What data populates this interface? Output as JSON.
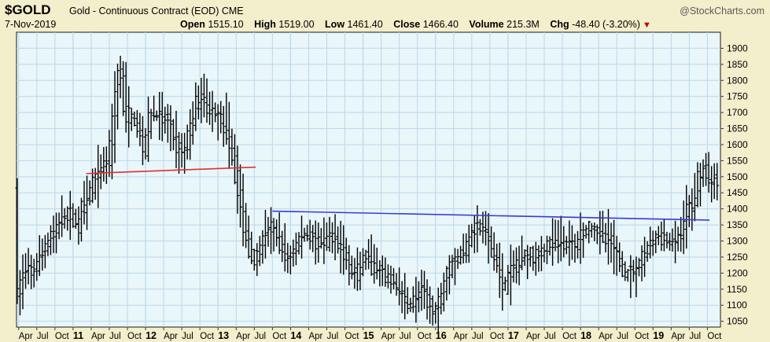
{
  "header": {
    "symbol": "$GOLD",
    "description": "Gold - Continuous Contract (EOD)",
    "exchange": "CME",
    "watermark": "@StockCharts.com",
    "date": "7-Nov-2019",
    "open_label": "Open",
    "open_value": "1515.10",
    "high_label": "High",
    "high_value": "1519.00",
    "low_label": "Low",
    "low_value": "1461.40",
    "close_label": "Close",
    "close_value": "1466.40",
    "volume_label": "Volume",
    "volume_value": "215.3M",
    "chg_label": "Chg",
    "chg_value": "-48.40 (-3.20%)"
  },
  "chart_data": {
    "type": "ohlc",
    "x_range": [
      2010.22,
      2019.93
    ],
    "ylim": [
      1032,
      1950
    ],
    "y_ticks": [
      1050,
      1100,
      1150,
      1200,
      1250,
      1300,
      1350,
      1400,
      1450,
      1500,
      1550,
      1600,
      1650,
      1700,
      1750,
      1800,
      1850,
      1900
    ],
    "x_tick_labels": [
      {
        "t": 2010.25,
        "label": "Apr"
      },
      {
        "t": 2010.5,
        "label": "Jul"
      },
      {
        "t": 2010.75,
        "label": "Oct"
      },
      {
        "t": 2011.0,
        "label": "11",
        "year": true
      },
      {
        "t": 2011.25,
        "label": "Apr"
      },
      {
        "t": 2011.5,
        "label": "Jul"
      },
      {
        "t": 2011.75,
        "label": "Oct"
      },
      {
        "t": 2012.0,
        "label": "12",
        "year": true
      },
      {
        "t": 2012.25,
        "label": "Apr"
      },
      {
        "t": 2012.5,
        "label": "Jul"
      },
      {
        "t": 2012.75,
        "label": "Oct"
      },
      {
        "t": 2013.0,
        "label": "13",
        "year": true
      },
      {
        "t": 2013.25,
        "label": "Apr"
      },
      {
        "t": 2013.5,
        "label": "Jul"
      },
      {
        "t": 2013.75,
        "label": "Oct"
      },
      {
        "t": 2014.0,
        "label": "14",
        "year": true
      },
      {
        "t": 2014.25,
        "label": "Apr"
      },
      {
        "t": 2014.5,
        "label": "Jul"
      },
      {
        "t": 2014.75,
        "label": "Oct"
      },
      {
        "t": 2015.0,
        "label": "15",
        "year": true
      },
      {
        "t": 2015.25,
        "label": "Apr"
      },
      {
        "t": 2015.5,
        "label": "Jul"
      },
      {
        "t": 2015.75,
        "label": "Oct"
      },
      {
        "t": 2016.0,
        "label": "16",
        "year": true
      },
      {
        "t": 2016.25,
        "label": "Apr"
      },
      {
        "t": 2016.5,
        "label": "Jul"
      },
      {
        "t": 2016.75,
        "label": "Oct"
      },
      {
        "t": 2017.0,
        "label": "17",
        "year": true
      },
      {
        "t": 2017.25,
        "label": "Apr"
      },
      {
        "t": 2017.5,
        "label": "Jul"
      },
      {
        "t": 2017.75,
        "label": "Oct"
      },
      {
        "t": 2018.0,
        "label": "18",
        "year": true
      },
      {
        "t": 2018.25,
        "label": "Apr"
      },
      {
        "t": 2018.5,
        "label": "Jul"
      },
      {
        "t": 2018.75,
        "label": "Oct"
      },
      {
        "t": 2019.0,
        "label": "19",
        "year": true
      },
      {
        "t": 2019.25,
        "label": "Apr"
      },
      {
        "t": 2019.5,
        "label": "Jul"
      },
      {
        "t": 2019.75,
        "label": "Oct"
      }
    ],
    "trendlines": [
      {
        "color": "#e03030",
        "from": [
          2011.18,
          1510
        ],
        "to": [
          2013.52,
          1530
        ]
      },
      {
        "color": "#3a3ad8",
        "from": [
          2013.75,
          1393
        ],
        "to": [
          2019.78,
          1365
        ]
      }
    ],
    "anchors": [
      [
        2010.22,
        1110
      ],
      [
        2010.35,
        1210
      ],
      [
        2010.45,
        1195
      ],
      [
        2010.55,
        1240
      ],
      [
        2010.65,
        1290
      ],
      [
        2010.8,
        1340
      ],
      [
        2010.9,
        1380
      ],
      [
        2011.0,
        1380
      ],
      [
        2011.08,
        1350
      ],
      [
        2011.18,
        1420
      ],
      [
        2011.3,
        1475
      ],
      [
        2011.4,
        1530
      ],
      [
        2011.52,
        1560
      ],
      [
        2011.62,
        1790
      ],
      [
        2011.68,
        1860
      ],
      [
        2011.75,
        1650
      ],
      [
        2011.82,
        1700
      ],
      [
        2011.92,
        1650
      ],
      [
        2012.0,
        1580
      ],
      [
        2012.08,
        1700
      ],
      [
        2012.2,
        1690
      ],
      [
        2012.35,
        1660
      ],
      [
        2012.45,
        1590
      ],
      [
        2012.55,
        1570
      ],
      [
        2012.68,
        1700
      ],
      [
        2012.78,
        1760
      ],
      [
        2012.88,
        1720
      ],
      [
        2012.98,
        1690
      ],
      [
        2013.08,
        1680
      ],
      [
        2013.2,
        1600
      ],
      [
        2013.3,
        1450
      ],
      [
        2013.38,
        1350
      ],
      [
        2013.45,
        1270
      ],
      [
        2013.55,
        1230
      ],
      [
        2013.65,
        1320
      ],
      [
        2013.75,
        1340
      ],
      [
        2013.85,
        1310
      ],
      [
        2013.95,
        1240
      ],
      [
        2014.05,
        1260
      ],
      [
        2014.15,
        1310
      ],
      [
        2014.25,
        1330
      ],
      [
        2014.4,
        1290
      ],
      [
        2014.5,
        1300
      ],
      [
        2014.6,
        1320
      ],
      [
        2014.75,
        1270
      ],
      [
        2014.85,
        1200
      ],
      [
        2014.95,
        1195
      ],
      [
        2015.05,
        1260
      ],
      [
        2015.15,
        1220
      ],
      [
        2015.3,
        1190
      ],
      [
        2015.45,
        1175
      ],
      [
        2015.55,
        1130
      ],
      [
        2015.65,
        1100
      ],
      [
        2015.8,
        1140
      ],
      [
        2015.9,
        1120
      ],
      [
        2016.0,
        1070
      ],
      [
        2016.08,
        1110
      ],
      [
        2016.15,
        1180
      ],
      [
        2016.25,
        1240
      ],
      [
        2016.4,
        1260
      ],
      [
        2016.5,
        1320
      ],
      [
        2016.6,
        1350
      ],
      [
        2016.7,
        1330
      ],
      [
        2016.8,
        1270
      ],
      [
        2016.88,
        1220
      ],
      [
        2016.95,
        1150
      ],
      [
        2017.05,
        1200
      ],
      [
        2017.15,
        1240
      ],
      [
        2017.3,
        1260
      ],
      [
        2017.45,
        1250
      ],
      [
        2017.55,
        1280
      ],
      [
        2017.68,
        1310
      ],
      [
        2017.8,
        1290
      ],
      [
        2017.95,
        1290
      ],
      [
        2018.05,
        1330
      ],
      [
        2018.15,
        1340
      ],
      [
        2018.25,
        1330
      ],
      [
        2018.35,
        1320
      ],
      [
        2018.45,
        1290
      ],
      [
        2018.55,
        1240
      ],
      [
        2018.62,
        1195
      ],
      [
        2018.72,
        1200
      ],
      [
        2018.82,
        1220
      ],
      [
        2018.92,
        1270
      ],
      [
        2019.0,
        1290
      ],
      [
        2019.1,
        1320
      ],
      [
        2019.2,
        1300
      ],
      [
        2019.3,
        1285
      ],
      [
        2019.42,
        1330
      ],
      [
        2019.5,
        1400
      ],
      [
        2019.55,
        1420
      ],
      [
        2019.6,
        1430
      ],
      [
        2019.65,
        1500
      ],
      [
        2019.72,
        1530
      ],
      [
        2019.78,
        1490
      ],
      [
        2019.85,
        1500
      ],
      [
        2019.9,
        1470
      ]
    ]
  }
}
